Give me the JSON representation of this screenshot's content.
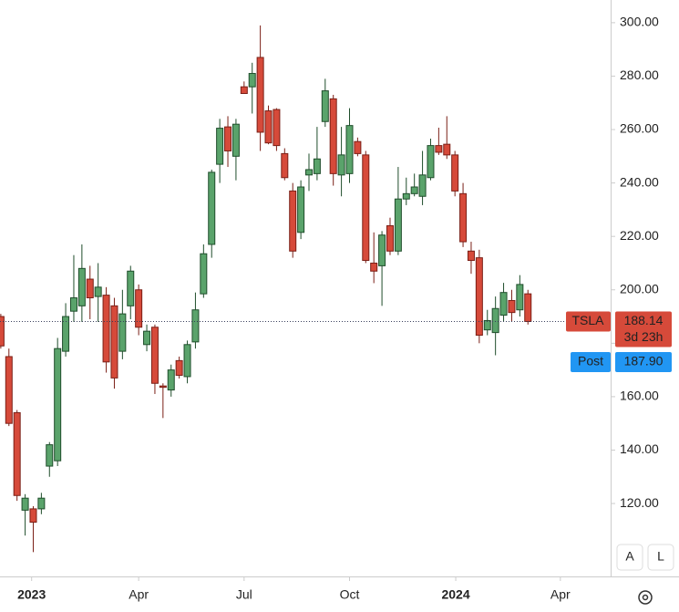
{
  "chart_data": {
    "type": "candlestick",
    "symbol": "TSLA",
    "x": [
      0,
      1,
      2,
      3,
      4,
      5,
      6,
      7,
      8,
      9,
      10,
      11,
      12,
      13,
      14,
      15,
      16,
      17,
      18,
      19,
      20,
      21,
      22,
      23,
      24,
      25,
      26,
      27,
      28,
      29,
      30,
      31,
      32,
      33,
      34,
      35,
      36,
      37,
      38,
      39,
      40,
      41,
      42,
      43,
      44,
      45,
      46,
      47,
      48,
      49,
      50,
      51,
      52,
      53,
      54,
      55,
      56,
      57,
      58,
      59,
      60,
      61,
      62,
      63,
      64,
      65
    ],
    "open": [
      190,
      175,
      154,
      117.5,
      118,
      118,
      134,
      136,
      177,
      192,
      194,
      204,
      197.5,
      198,
      194,
      177,
      194,
      200,
      179.5,
      186,
      164,
      162.5,
      173.5,
      167.5,
      180.5,
      198.5,
      217,
      247,
      261,
      250,
      276,
      276,
      287,
      267,
      267.5,
      251,
      237,
      221.5,
      243,
      243.5,
      263,
      271.5,
      243,
      243.5,
      255.5,
      250.5,
      210,
      209,
      224,
      214.5,
      234,
      236,
      235,
      242,
      254,
      254.5,
      250.5,
      236,
      214.5,
      212,
      185,
      184,
      190.5,
      196,
      192.5,
      198.5
    ],
    "high": [
      191,
      178,
      155,
      123.5,
      119,
      124,
      143,
      182,
      195,
      213,
      217,
      209,
      210,
      201,
      197,
      200,
      209,
      202,
      187,
      187,
      165,
      172,
      175,
      181,
      199,
      217,
      245,
      264,
      265,
      264,
      278,
      285,
      299,
      269,
      268,
      253,
      240,
      241,
      251,
      261,
      279,
      273,
      261,
      268,
      257,
      252,
      221.5,
      222,
      227,
      246,
      242,
      243.5,
      252,
      256.6,
      260.7,
      265,
      252,
      240,
      218,
      215,
      192.5,
      197.5,
      202.6,
      200,
      205.5,
      200
    ],
    "low": [
      178,
      149,
      121,
      108,
      101.8,
      116,
      130,
      134,
      175,
      188,
      188,
      189,
      188,
      169,
      163,
      174,
      189,
      183,
      177,
      161,
      152,
      160,
      166.8,
      165,
      178,
      197,
      212,
      240,
      246,
      241,
      273.5,
      266,
      252,
      254.5,
      252,
      241,
      212,
      219,
      237,
      241,
      261,
      239,
      235,
      240,
      250,
      210,
      202.5,
      194,
      213,
      213,
      231.7,
      235,
      231.7,
      241,
      250.5,
      249,
      235,
      216,
      206,
      180,
      183,
      175.5,
      188,
      188,
      190,
      187
    ],
    "close": [
      179,
      150,
      123,
      122,
      113,
      122,
      142,
      178,
      190,
      197,
      208,
      197,
      201,
      173,
      167,
      191,
      207,
      186,
      184.5,
      165,
      163.5,
      170,
      168,
      179.5,
      192.5,
      213.5,
      244,
      260.5,
      252,
      262,
      273.5,
      281,
      259,
      255,
      254,
      242,
      214.5,
      238.5,
      245,
      249,
      274.5,
      243.5,
      250.5,
      261.5,
      251,
      211,
      207,
      220.5,
      214.5,
      234,
      236,
      238.5,
      243,
      254,
      251.5,
      250.5,
      237,
      218,
      211,
      183,
      188.5,
      193,
      199,
      191.5,
      202,
      188.14
    ],
    "up_color": "#5aa36b",
    "down_color": "#d64a3a",
    "xlim": [
      -0.1,
      75.2
    ],
    "xticks": [
      {
        "value": 3.8,
        "label": "2023"
      },
      {
        "value": 17,
        "label": "Apr"
      },
      {
        "value": 30,
        "label": "Jul"
      },
      {
        "value": 43,
        "label": "Oct"
      },
      {
        "value": 56.1,
        "label": "2024"
      },
      {
        "value": 69,
        "label": "Apr"
      }
    ],
    "ylim": [
      92.7,
      308.5
    ],
    "yticks": [
      {
        "value": 120,
        "label": "120.00"
      },
      {
        "value": 140,
        "label": "140.00"
      },
      {
        "value": 160,
        "label": "160.00"
      },
      {
        "value": 180,
        "label": "180.00"
      },
      {
        "value": 200,
        "label": "200.00"
      },
      {
        "value": 220,
        "label": "220.00"
      },
      {
        "value": 240,
        "label": "240.00"
      },
      {
        "value": 260,
        "label": "260.00"
      },
      {
        "value": 280,
        "label": "280.00"
      },
      {
        "value": 300,
        "label": "300.00"
      }
    ],
    "last_price": 188.14,
    "countdown": "3d 23h",
    "post_label": "Post",
    "post_price": {
      "value": 187.9,
      "label": "187.90"
    },
    "buttons": [
      "A",
      "L"
    ]
  }
}
